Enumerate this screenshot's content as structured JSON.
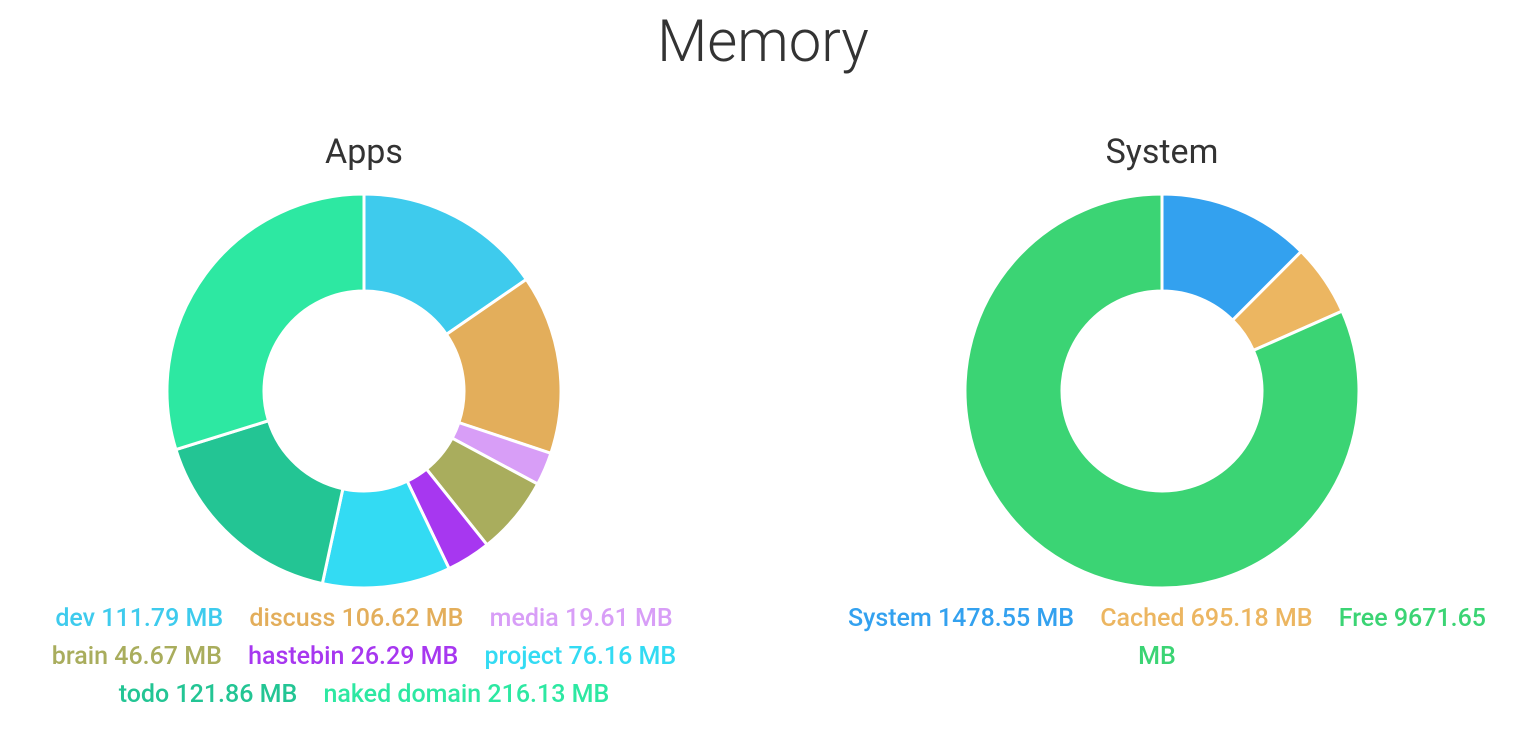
{
  "title": "Memory",
  "chart_data": [
    {
      "type": "donut",
      "title": "Apps",
      "categories": [
        "dev",
        "discuss",
        "media",
        "brain",
        "hastebin",
        "project",
        "todo",
        "naked domain"
      ],
      "values": [
        111.79,
        106.62,
        19.61,
        46.67,
        26.29,
        76.16,
        121.86,
        216.13
      ],
      "value_labels": [
        "111.79 MB",
        "106.62 MB",
        "19.61 MB",
        "46.67 MB",
        "26.29 MB",
        "76.16 MB",
        "121.86 MB",
        "216.13 MB"
      ],
      "colors": [
        "#3ecbed",
        "#e3ae5b",
        "#d89ef7",
        "#a9ad5d",
        "#a737f0",
        "#33dbf3",
        "#23c594",
        "#2de8a2"
      ]
    },
    {
      "type": "donut",
      "title": "System",
      "categories": [
        "System",
        "Cached",
        "Free"
      ],
      "values": [
        1478.55,
        695.18,
        9671.65
      ],
      "value_labels": [
        "1478.55 MB",
        "695.18 MB",
        "9671.65 MB"
      ],
      "colors": [
        "#33a1ef",
        "#ecb661",
        "#3bd474"
      ]
    }
  ]
}
